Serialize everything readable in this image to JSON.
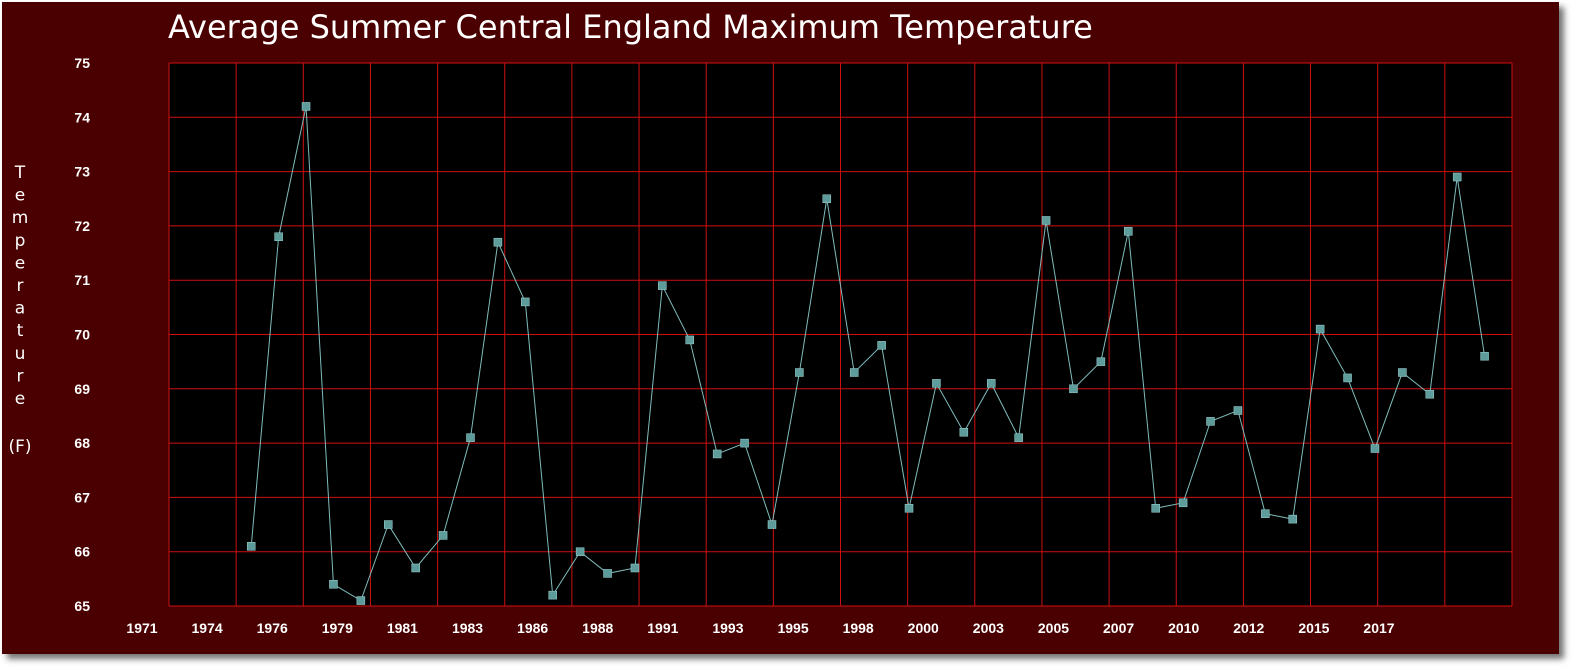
{
  "chart_data": {
    "type": "line",
    "title": "Average Summer Central England Maximum Temperature",
    "ylabel": "Temperature",
    "yunit": "(F)",
    "ylim": [
      65,
      75
    ],
    "yticks": [
      65,
      66,
      67,
      68,
      69,
      70,
      71,
      72,
      73,
      74,
      75
    ],
    "xlim": [
      1971,
      2020
    ],
    "xtick_labels": [
      "1971",
      "1974",
      "1976",
      "1979",
      "1981",
      "1983",
      "1986",
      "1988",
      "1991",
      "1993",
      "1995",
      "1998",
      "2000",
      "2003",
      "2005",
      "2007",
      "2010",
      "2012",
      "2015",
      "2017"
    ],
    "grid": true,
    "colors": {
      "background": "#4a0000",
      "plot_area": "#000000",
      "grid": "#d01010",
      "line": "#7fbcbc",
      "marker": "#5e9c9c",
      "text": "#ffffff"
    },
    "series": [
      {
        "x": [
          1974,
          1975,
          1976,
          1977,
          1978,
          1979,
          1980,
          1981,
          1982,
          1983,
          1984,
          1985,
          1986,
          1987,
          1988,
          1989,
          1990,
          1991,
          1992,
          1993,
          1994,
          1995,
          1996,
          1997,
          1998,
          1999,
          2000,
          2001,
          2002,
          2003,
          2004,
          2005,
          2006,
          2007,
          2008,
          2009,
          2010,
          2011,
          2012,
          2013,
          2014,
          2015,
          2016,
          2017,
          2018,
          2019
        ],
        "values": [
          66.1,
          71.8,
          74.2,
          65.4,
          65.1,
          66.5,
          65.7,
          66.3,
          68.1,
          71.7,
          70.6,
          65.2,
          66.0,
          65.6,
          65.7,
          70.9,
          69.9,
          67.8,
          68.0,
          66.5,
          69.3,
          72.5,
          69.3,
          69.8,
          66.8,
          69.1,
          68.2,
          69.1,
          68.1,
          72.1,
          69.0,
          69.5,
          71.9,
          66.8,
          66.9,
          68.4,
          68.6,
          66.7,
          66.6,
          70.1,
          69.2,
          67.9,
          69.3,
          68.9,
          72.9,
          69.6
        ]
      }
    ]
  }
}
